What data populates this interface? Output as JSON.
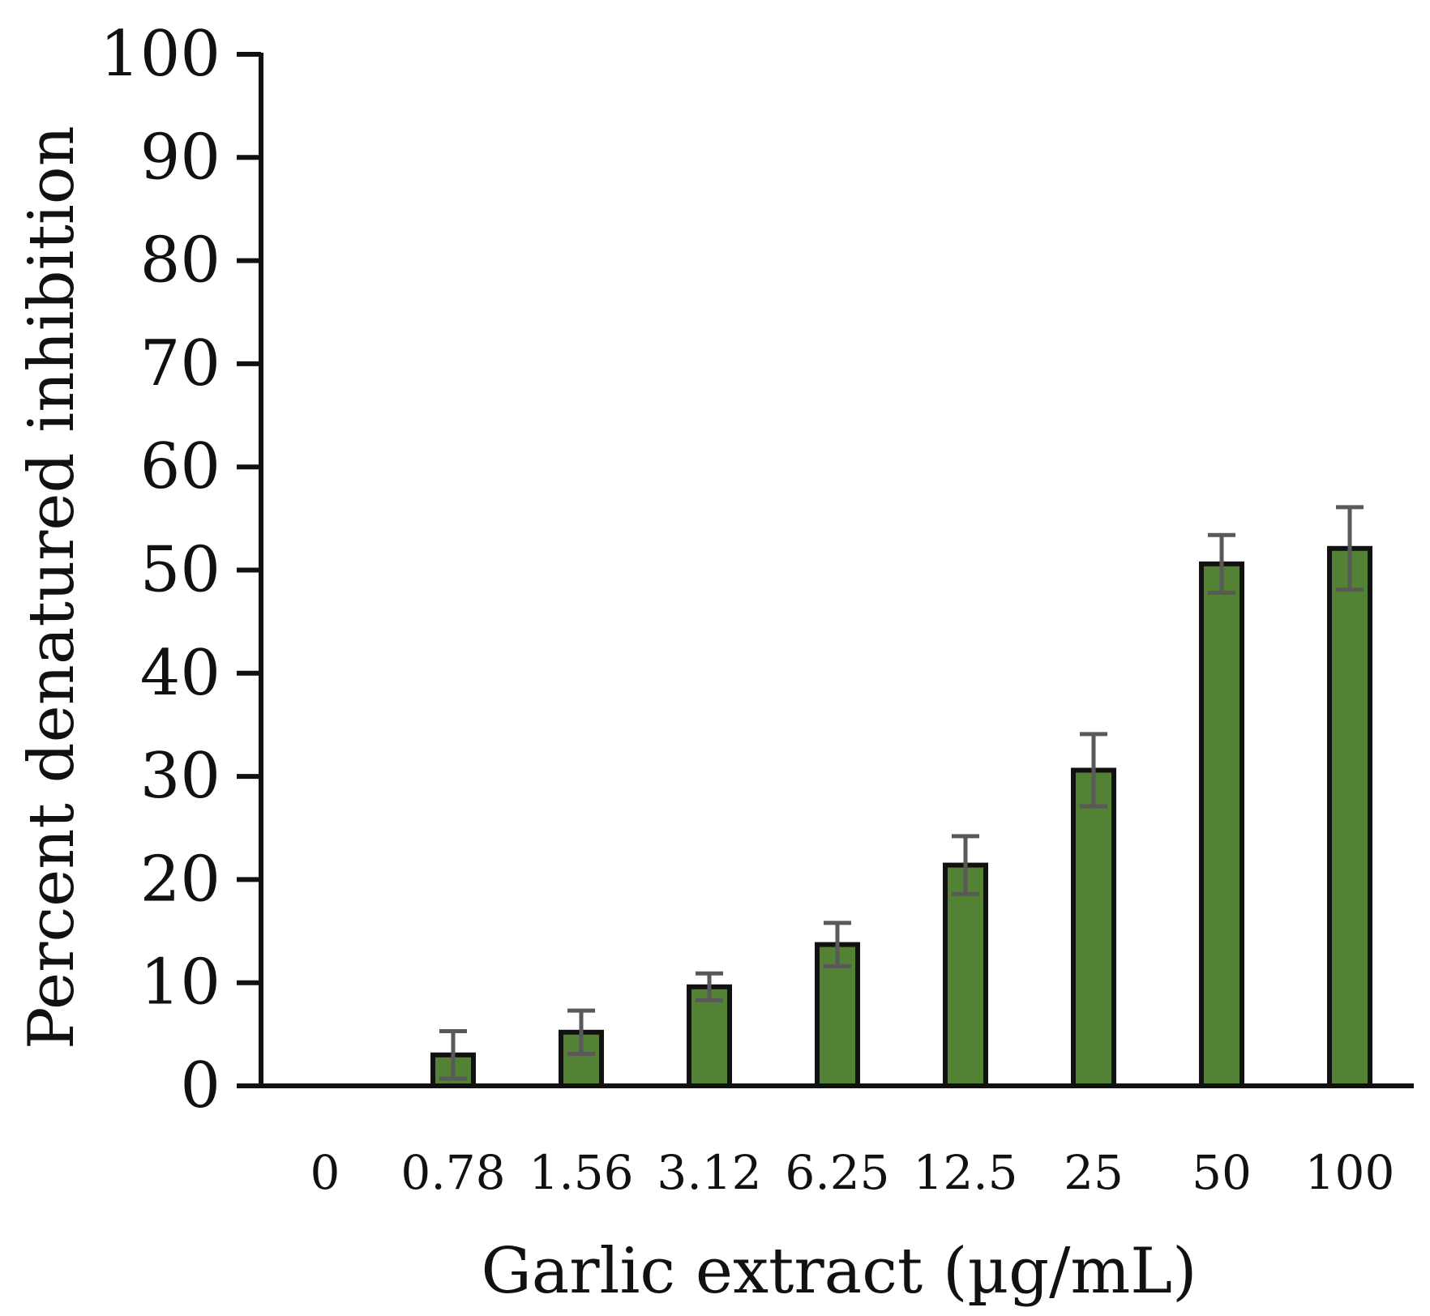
{
  "chart_data": {
    "type": "bar",
    "title": "",
    "xlabel": "Garlic extract (µg/mL)",
    "ylabel": "Percent denatured inhibition",
    "categories": [
      "0",
      "0.78",
      "1.56",
      "3.12",
      "6.25",
      "12.5",
      "25",
      "50",
      "100"
    ],
    "series": [
      {
        "values": [
          0,
          3.0,
          5.2,
          9.6,
          13.7,
          21.4,
          30.6,
          50.6,
          52.1
        ],
        "error": [
          0,
          2.3,
          2.1,
          1.3,
          2.1,
          2.8,
          3.5,
          2.8,
          4.0
        ]
      }
    ],
    "ylim": [
      0,
      100
    ],
    "yticks": [
      0,
      10,
      20,
      30,
      40,
      50,
      60,
      70,
      80,
      90,
      100
    ],
    "grid": false,
    "legend": "none",
    "colors": {
      "bar_fill": "#548235",
      "bar_stroke": "#111111",
      "error_bar": "#595959",
      "axis": "#111111"
    }
  }
}
